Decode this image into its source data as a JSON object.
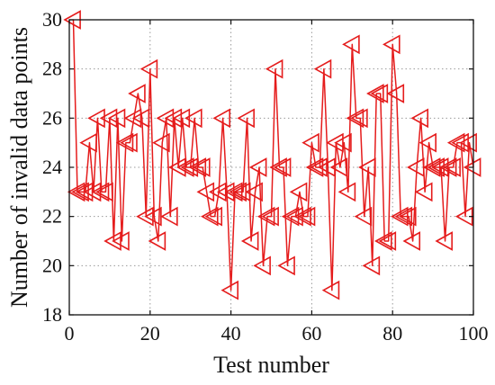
{
  "chart_data": {
    "type": "line",
    "title": "",
    "xlabel": "Test number",
    "ylabel": "Number of invalid data points",
    "xlim": [
      0,
      100
    ],
    "ylim": [
      18,
      30
    ],
    "xticks": [
      0,
      20,
      40,
      60,
      80,
      100
    ],
    "yticks": [
      18,
      20,
      22,
      24,
      26,
      28,
      30
    ],
    "grid": true,
    "grid_style": "dotted",
    "marker": "left-pointing triangle",
    "series_color": "#e51c1c",
    "x": [
      1,
      2,
      3,
      4,
      5,
      6,
      7,
      8,
      9,
      10,
      11,
      12,
      13,
      14,
      15,
      16,
      17,
      18,
      19,
      20,
      21,
      22,
      23,
      24,
      25,
      26,
      27,
      28,
      29,
      30,
      31,
      32,
      33,
      34,
      35,
      36,
      37,
      38,
      39,
      40,
      41,
      42,
      43,
      44,
      45,
      46,
      47,
      48,
      49,
      50,
      51,
      52,
      53,
      54,
      55,
      56,
      57,
      58,
      59,
      60,
      61,
      62,
      63,
      64,
      65,
      66,
      67,
      68,
      69,
      70,
      71,
      72,
      73,
      74,
      75,
      76,
      77,
      78,
      79,
      80,
      81,
      82,
      83,
      84,
      85,
      86,
      87,
      88,
      89,
      90,
      91,
      92,
      93,
      94,
      95,
      96,
      97,
      98,
      99,
      100
    ],
    "series": [
      {
        "values": [
          30,
          23,
          23,
          23,
          25,
          23,
          26,
          23,
          23,
          26,
          21,
          26,
          21,
          25,
          25,
          26,
          27,
          26,
          22,
          28,
          22,
          21,
          25,
          26,
          22,
          26,
          24,
          26,
          24,
          24,
          26,
          24,
          24,
          23,
          22,
          22,
          23,
          26,
          23,
          19,
          23,
          23,
          23,
          26,
          21,
          23,
          24,
          20,
          22,
          22,
          28,
          24,
          24,
          20,
          22,
          22,
          23,
          22,
          22,
          25,
          24,
          24,
          28,
          24,
          19,
          25,
          24,
          25,
          23,
          29,
          26,
          26,
          22,
          24,
          20,
          27,
          27,
          21,
          21,
          29,
          27,
          22,
          22,
          22,
          21,
          24,
          26,
          23,
          25,
          24,
          24,
          24,
          21,
          24,
          24,
          25,
          25,
          22,
          25,
          24
        ]
      }
    ]
  }
}
